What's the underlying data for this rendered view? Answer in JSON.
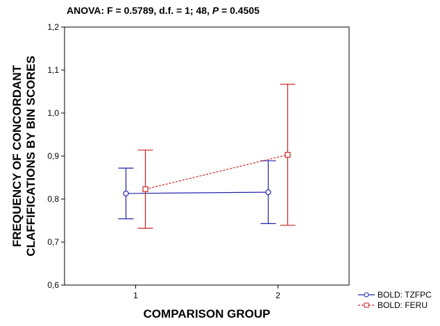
{
  "chart_data": {
    "type": "errorbar-line",
    "title": [
      "ANOVA: F = 0.5789, d.f. = 1; 48, ",
      "P",
      " = 0.4505"
    ],
    "x_label": "COMPARISON GROUP",
    "y_label": [
      "FREQUENCY OF CONCORDANT",
      "CLAFFIFICATIONS BY BIN SCORES"
    ],
    "x": [
      1,
      2
    ],
    "xlim": [
      0.5,
      2.5
    ],
    "xticks": [
      1,
      2
    ],
    "ylim": [
      0.6,
      1.2
    ],
    "yticks": [
      {
        "value": 0.6,
        "label": "0,6"
      },
      {
        "value": 0.7,
        "label": "0,7"
      },
      {
        "value": 0.8,
        "label": "0,8"
      },
      {
        "value": 0.9,
        "label": "0,9"
      },
      {
        "value": 1.0,
        "label": "1,0"
      },
      {
        "value": 1.1,
        "label": "1,1"
      },
      {
        "value": 1.2,
        "label": "1,2"
      }
    ],
    "grid": false,
    "legend": "bottom-right",
    "series": [
      {
        "name": "BOLD: TZFPC",
        "color": "#2222aa",
        "marker": "circle",
        "dash": false,
        "values": [
          0.813,
          0.816
        ],
        "errors": [
          0.059,
          0.073
        ]
      },
      {
        "name": "BOLD: FERU",
        "color": "#cc2222",
        "marker": "square",
        "dash": true,
        "values": [
          0.823,
          0.903
        ],
        "errors": [
          0.091,
          0.164
        ]
      }
    ]
  }
}
